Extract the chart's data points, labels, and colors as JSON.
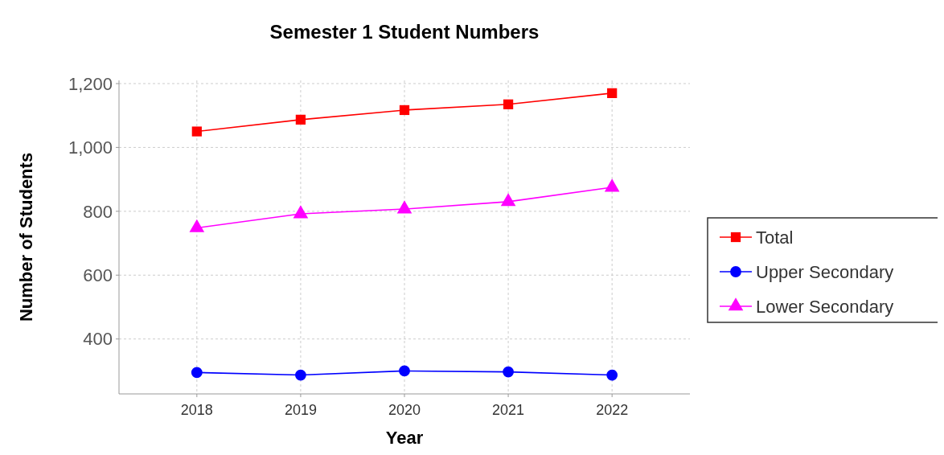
{
  "chart_data": {
    "type": "line",
    "title": "Semester 1 Student Numbers",
    "xlabel": "Year",
    "ylabel": "Number of Students",
    "categories": [
      "2018",
      "2019",
      "2020",
      "2021",
      "2022"
    ],
    "series": [
      {
        "name": "Total",
        "color": "#ff0000",
        "marker": "square",
        "values": [
          1050,
          1087,
          1117,
          1135,
          1170
        ]
      },
      {
        "name": "Upper Secondary",
        "color": "#0000ff",
        "marker": "circle",
        "values": [
          295,
          287,
          300,
          297,
          287
        ]
      },
      {
        "name": "Lower Secondary",
        "color": "#ff00ff",
        "marker": "triangle",
        "values": [
          748,
          792,
          807,
          830,
          875
        ]
      }
    ],
    "ylim": [
      228,
      1210
    ],
    "yticks": [
      400,
      600,
      800,
      {
        "value": 1000,
        "label": "1,000"
      },
      {
        "value": 1200,
        "label": "1,200"
      }
    ],
    "grid": true,
    "legend": "right",
    "line_style": "solid"
  }
}
